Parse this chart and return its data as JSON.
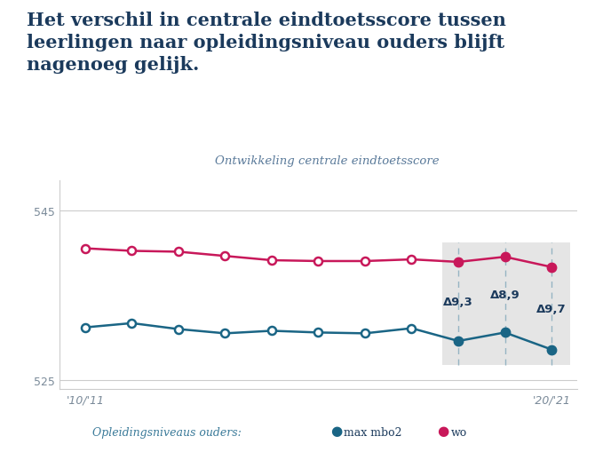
{
  "title_line1": "Het verschil in centrale eindtoetsscore tussen",
  "title_line2": "leerlingen naar opleidingsniveau ouders blijft",
  "title_line3": "nagenoeg gelijk.",
  "subtitle": "Ontwikkeling centrale eindtoetsscore",
  "years": [
    2010,
    2011,
    2012,
    2013,
    2014,
    2015,
    2016,
    2017,
    2018,
    2019,
    2020
  ],
  "xlabels": [
    "'10/'11",
    "'20/'21"
  ],
  "ylim": [
    524.0,
    548.5
  ],
  "yticks": [
    525,
    545
  ],
  "wo_values": [
    540.5,
    540.2,
    540.1,
    539.6,
    539.1,
    539.0,
    539.0,
    539.2,
    538.9,
    539.5,
    538.3
  ],
  "mbo_values": [
    531.2,
    531.7,
    531.0,
    530.5,
    530.8,
    530.6,
    530.5,
    531.1,
    529.6,
    530.6,
    528.6
  ],
  "wo_filled": [
    false,
    false,
    false,
    false,
    false,
    false,
    false,
    false,
    true,
    true,
    true
  ],
  "mbo_filled": [
    false,
    false,
    false,
    false,
    false,
    false,
    false,
    false,
    true,
    true,
    true
  ],
  "wo_color": "#C8185A",
  "mbo_color": "#1A6585",
  "highlight_indices": [
    8,
    9,
    10
  ],
  "delta_labels": [
    "Δ9,3",
    "Δ8,9",
    "Δ9,7"
  ],
  "bg_color": "#FFFFFF",
  "highlight_bg": "#E5E5E5",
  "dashed_color": "#96B4C3",
  "legend_label_mbo": "max mbo2",
  "legend_label_wo": "wo",
  "legend_prefix": "Opleidingsniveaus ouders:",
  "title_color": "#1B3A5C",
  "subtitle_color": "#5A7A9A",
  "tick_color": "#7A8A99",
  "legend_prefix_color": "#3A7A99",
  "legend_text_color": "#1B3A5C"
}
